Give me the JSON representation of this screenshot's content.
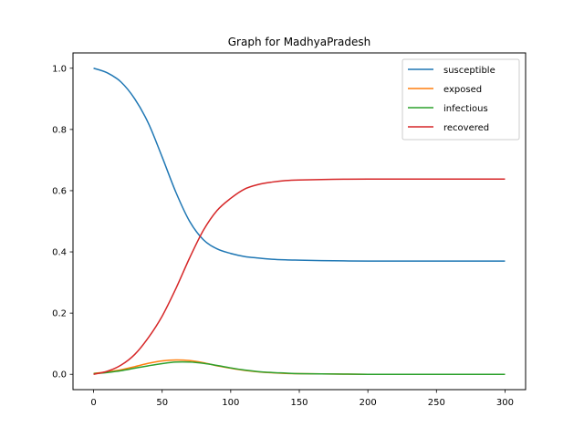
{
  "chart_data": {
    "type": "line",
    "title": "Graph for MadhyaPradesh",
    "xlabel": "",
    "ylabel": "",
    "xlim": [
      -15,
      315
    ],
    "ylim": [
      -0.05,
      1.05
    ],
    "xticks": [
      0,
      50,
      100,
      150,
      200,
      250,
      300
    ],
    "yticks": [
      0.0,
      0.2,
      0.4,
      0.6,
      0.8,
      1.0
    ],
    "xtick_labels": [
      "0",
      "50",
      "100",
      "150",
      "200",
      "250",
      "300"
    ],
    "ytick_labels": [
      "0.0",
      "0.2",
      "0.4",
      "0.6",
      "0.8",
      "1.0"
    ],
    "grid": false,
    "legend_position": "top-right",
    "x": [
      0,
      10,
      20,
      30,
      40,
      50,
      60,
      70,
      80,
      90,
      100,
      110,
      120,
      130,
      140,
      150,
      175,
      200,
      250,
      300
    ],
    "series": [
      {
        "name": "susceptible",
        "color": "#1f77b4",
        "values": [
          1.0,
          0.985,
          0.955,
          0.9,
          0.82,
          0.71,
          0.595,
          0.5,
          0.44,
          0.41,
          0.395,
          0.385,
          0.38,
          0.376,
          0.374,
          0.373,
          0.371,
          0.37,
          0.37,
          0.37
        ]
      },
      {
        "name": "exposed",
        "color": "#ff7f0e",
        "values": [
          0.003,
          0.008,
          0.015,
          0.025,
          0.036,
          0.044,
          0.047,
          0.045,
          0.038,
          0.028,
          0.02,
          0.013,
          0.008,
          0.005,
          0.003,
          0.002,
          0.001,
          0.0,
          0.0,
          0.0
        ]
      },
      {
        "name": "infectious",
        "color": "#2ca02c",
        "values": [
          0.002,
          0.006,
          0.012,
          0.02,
          0.028,
          0.035,
          0.04,
          0.04,
          0.036,
          0.029,
          0.021,
          0.014,
          0.009,
          0.006,
          0.004,
          0.002,
          0.001,
          0.0,
          0.0,
          0.0
        ]
      },
      {
        "name": "recovered",
        "color": "#d62728",
        "values": [
          0.0,
          0.01,
          0.03,
          0.065,
          0.12,
          0.19,
          0.28,
          0.38,
          0.47,
          0.535,
          0.575,
          0.605,
          0.62,
          0.628,
          0.633,
          0.635,
          0.637,
          0.638,
          0.638,
          0.638
        ]
      }
    ]
  }
}
